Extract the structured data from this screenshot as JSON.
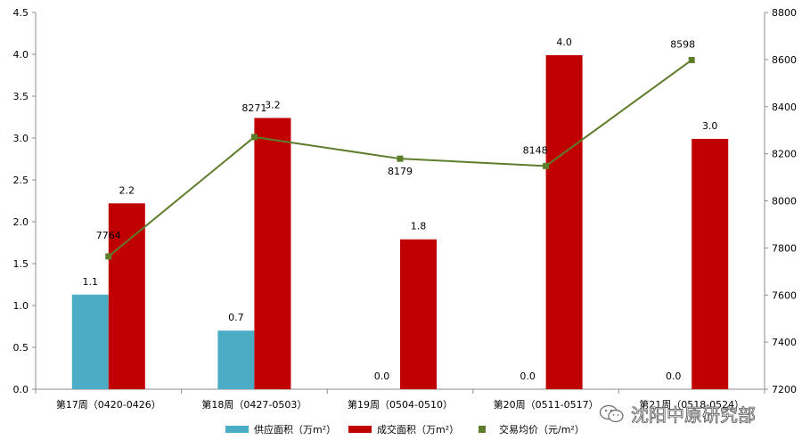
{
  "chart_data": {
    "type": "bar",
    "categories": [
      "第17周（0420-0426）",
      "第18周（0427-0503）",
      "第19周（0504-0510）",
      "第20周（0511-0517）",
      "第21周（0518-0524）"
    ],
    "series": [
      {
        "name": "供应面积（万m²）",
        "type": "bar",
        "axis": "left",
        "color": "#4BACC6",
        "values": [
          1.13,
          0.7,
          0.0,
          0.0,
          0.0
        ],
        "labels": [
          "1.1",
          "0.7",
          "0.0",
          "0.0",
          "0.0"
        ]
      },
      {
        "name": "成交面积（万m²）",
        "type": "bar",
        "axis": "left",
        "color": "#C00000",
        "values": [
          2.22,
          3.24,
          1.79,
          3.99,
          2.99
        ],
        "labels": [
          "2.2",
          "3.2",
          "1.8",
          "4.0",
          "3.0"
        ]
      },
      {
        "name": "交易均价（元/m²）",
        "type": "line",
        "axis": "right",
        "color": "#5E7D2A",
        "values": [
          7764,
          8271,
          8179,
          8148,
          8598
        ],
        "labels": [
          "7764",
          "8271",
          "8179",
          "8148",
          "8598"
        ]
      }
    ],
    "y_left": {
      "min": 0,
      "max": 4.5,
      "step": 0.5,
      "ticks": [
        "0.0",
        "0.5",
        "1.0",
        "1.5",
        "2.0",
        "2.5",
        "3.0",
        "3.5",
        "4.0",
        "4.5"
      ]
    },
    "y_right": {
      "min": 7200,
      "max": 8800,
      "step": 200,
      "ticks": [
        "7200",
        "7400",
        "7600",
        "7800",
        "8000",
        "8200",
        "8400",
        "8600",
        "8800"
      ]
    },
    "grid": false,
    "legend_position": "bottom"
  },
  "watermark": {
    "text": "沈阳中原研究部",
    "icon": "wechat-icon"
  }
}
